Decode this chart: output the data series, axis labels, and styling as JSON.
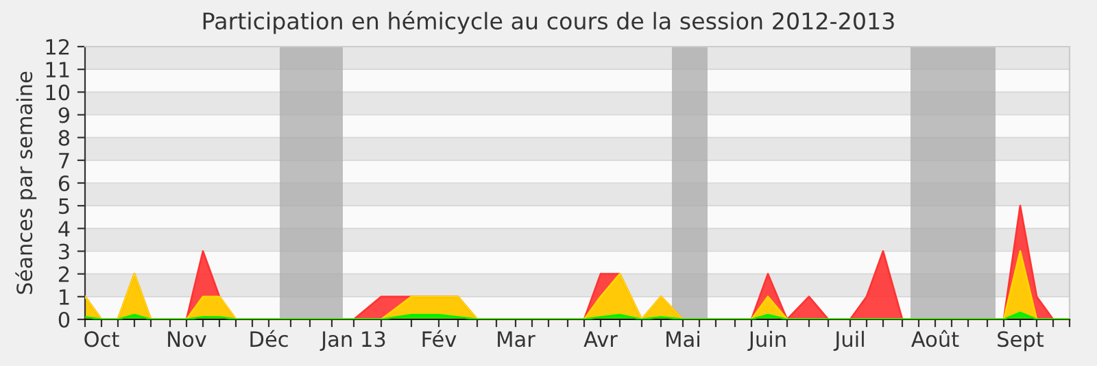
{
  "chart_data": {
    "type": "area",
    "title": "Participation en hémicycle au cours de la session 2012-2013",
    "ylabel": "Séances par semaine",
    "x": [
      "2012-09-25",
      "2012-10-01",
      "2012-10-07",
      "2012-10-13",
      "2012-10-19",
      "2012-10-26",
      "2012-11-01",
      "2012-11-07",
      "2012-11-13",
      "2012-11-19",
      "2012-11-25",
      "2012-12-01",
      "2012-12-09",
      "2012-12-16",
      "2012-12-24",
      "2013-01-01",
      "2013-01-11",
      "2013-01-22",
      "2013-02-01",
      "2013-02-08",
      "2013-02-15",
      "2013-02-22",
      "2013-03-01",
      "2013-03-07",
      "2013-03-13",
      "2013-03-20",
      "2013-03-26",
      "2013-04-01",
      "2013-04-08",
      "2013-04-16",
      "2013-04-23",
      "2013-05-01",
      "2013-05-07",
      "2013-05-13",
      "2013-05-20",
      "2013-05-26",
      "2013-06-01",
      "2013-06-08",
      "2013-06-16",
      "2013-06-23",
      "2013-07-01",
      "2013-07-07",
      "2013-07-13",
      "2013-07-20",
      "2013-07-26",
      "2013-08-01",
      "2013-08-07",
      "2013-08-13",
      "2013-08-20",
      "2013-08-26",
      "2013-09-01",
      "2013-09-07",
      "2013-09-13",
      "2013-09-19"
    ],
    "series": [
      {
        "color": "#ff3333",
        "values": [
          1,
          0,
          0,
          2,
          0,
          0,
          0,
          3,
          1,
          0,
          0,
          0,
          0,
          0,
          0,
          0,
          1,
          1,
          1,
          1,
          0,
          0,
          0,
          0,
          0,
          0,
          0,
          2,
          2,
          0,
          1,
          0,
          0,
          0,
          0,
          0,
          2,
          0,
          1,
          0,
          0,
          1,
          3,
          0,
          0,
          0,
          0,
          0,
          0,
          0,
          5,
          1,
          0,
          0
        ]
      },
      {
        "color": "#ffd700",
        "values": [
          1,
          0,
          0,
          2,
          0,
          0,
          0,
          1,
          1,
          0,
          0,
          0,
          0,
          0,
          0,
          0,
          0,
          1,
          1,
          1,
          0,
          0,
          0,
          0,
          0,
          0,
          0,
          1,
          2,
          0,
          1,
          0,
          0,
          0,
          0,
          0,
          1,
          0,
          0,
          0,
          0,
          0,
          0,
          0,
          0,
          0,
          0,
          0,
          0,
          0,
          3,
          0,
          0,
          0
        ]
      },
      {
        "color": "#00ee00",
        "values": [
          0.1,
          0,
          0,
          0.2,
          0,
          0,
          0,
          0.1,
          0.1,
          0,
          0,
          0,
          0,
          0,
          0,
          0,
          0,
          0.2,
          0.2,
          0.1,
          0,
          0,
          0,
          0,
          0,
          0,
          0,
          0.1,
          0.2,
          0,
          0.1,
          0,
          0,
          0,
          0,
          0,
          0.2,
          0,
          0,
          0,
          0,
          0,
          0,
          0,
          0,
          0,
          0,
          0,
          0,
          0,
          0.3,
          0,
          0,
          0
        ]
      }
    ],
    "xlim": [
      "2012-09-25",
      "2013-09-19"
    ],
    "ylim": [
      0,
      12
    ],
    "yticks": [
      0,
      1,
      2,
      3,
      4,
      5,
      6,
      7,
      8,
      9,
      10,
      11,
      12
    ],
    "xticks": [
      {
        "value": "2012-09-25",
        "label": null
      },
      {
        "value": "2012-10-01",
        "label": "Oct"
      },
      {
        "value": "2012-10-07",
        "label": null
      },
      {
        "value": "2012-10-13",
        "label": null
      },
      {
        "value": "2012-10-19",
        "label": null
      },
      {
        "value": "2012-10-26",
        "label": null
      },
      {
        "value": "2012-11-01",
        "label": "Nov"
      },
      {
        "value": "2012-11-07",
        "label": null
      },
      {
        "value": "2012-11-13",
        "label": null
      },
      {
        "value": "2012-11-19",
        "label": null
      },
      {
        "value": "2012-11-25",
        "label": null
      },
      {
        "value": "2012-12-01",
        "label": "Déc"
      },
      {
        "value": "2012-12-09",
        "label": null
      },
      {
        "value": "2012-12-16",
        "label": null
      },
      {
        "value": "2012-12-24",
        "label": null
      },
      {
        "value": "2013-01-01",
        "label": "Jan 13"
      },
      {
        "value": "2013-01-11",
        "label": null
      },
      {
        "value": "2013-01-22",
        "label": null
      },
      {
        "value": "2013-02-01",
        "label": "Fév"
      },
      {
        "value": "2013-02-08",
        "label": null
      },
      {
        "value": "2013-02-15",
        "label": null
      },
      {
        "value": "2013-02-22",
        "label": null
      },
      {
        "value": "2013-03-01",
        "label": "Mar"
      },
      {
        "value": "2013-03-07",
        "label": null
      },
      {
        "value": "2013-03-13",
        "label": null
      },
      {
        "value": "2013-03-20",
        "label": null
      },
      {
        "value": "2013-03-26",
        "label": null
      },
      {
        "value": "2013-04-01",
        "label": "Avr"
      },
      {
        "value": "2013-04-08",
        "label": null
      },
      {
        "value": "2013-04-16",
        "label": null
      },
      {
        "value": "2013-04-23",
        "label": null
      },
      {
        "value": "2013-05-01",
        "label": "Mai"
      },
      {
        "value": "2013-05-07",
        "label": null
      },
      {
        "value": "2013-05-13",
        "label": null
      },
      {
        "value": "2013-05-20",
        "label": null
      },
      {
        "value": "2013-05-26",
        "label": null
      },
      {
        "value": "2013-06-01",
        "label": "Juin"
      },
      {
        "value": "2013-06-08",
        "label": null
      },
      {
        "value": "2013-06-16",
        "label": null
      },
      {
        "value": "2013-06-23",
        "label": null
      },
      {
        "value": "2013-07-01",
        "label": "Juil"
      },
      {
        "value": "2013-07-07",
        "label": null
      },
      {
        "value": "2013-07-13",
        "label": null
      },
      {
        "value": "2013-07-20",
        "label": null
      },
      {
        "value": "2013-07-26",
        "label": null
      },
      {
        "value": "2013-08-01",
        "label": "Août"
      },
      {
        "value": "2013-08-07",
        "label": null
      },
      {
        "value": "2013-08-13",
        "label": null
      },
      {
        "value": "2013-08-20",
        "label": null
      },
      {
        "value": "2013-08-26",
        "label": null
      },
      {
        "value": "2013-09-01",
        "label": "Sept"
      },
      {
        "value": "2013-09-07",
        "label": null
      },
      {
        "value": "2013-09-13",
        "label": null
      },
      {
        "value": "2013-09-19",
        "label": null
      }
    ],
    "bands": [
      {
        "axis": "x",
        "from": "2012-12-05",
        "to": "2012-12-28",
        "color": "#aaaaaa"
      },
      {
        "axis": "x",
        "from": "2013-04-27",
        "to": "2013-05-10",
        "color": "#aaaaaa"
      },
      {
        "axis": "x",
        "from": "2013-07-23",
        "to": "2013-08-23",
        "color": "#aaaaaa"
      }
    ],
    "grid": "y"
  }
}
